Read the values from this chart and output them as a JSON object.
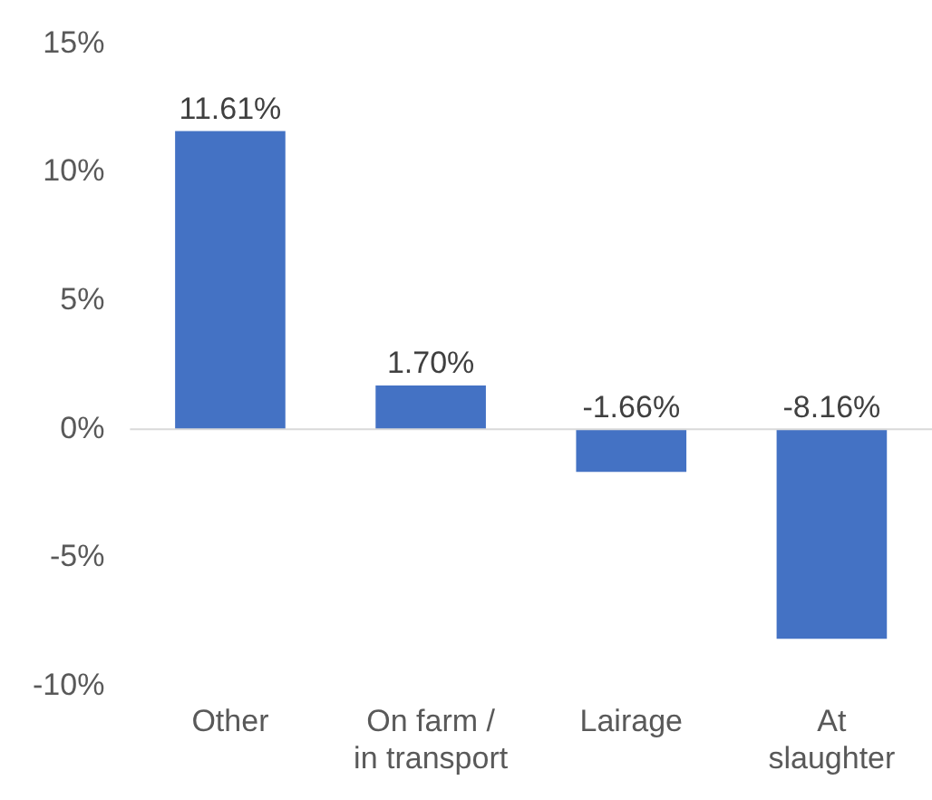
{
  "chart_data": {
    "type": "bar",
    "categories": [
      "Other",
      "On farm / in transport",
      "Lairage",
      "At slaughter"
    ],
    "values": [
      11.61,
      1.7,
      -1.66,
      -8.16
    ],
    "color": "#4472c4",
    "value_labels": [
      "11.61%",
      "1.70%",
      "-1.66%",
      "-8.16%"
    ],
    "ylim": [
      -10,
      15
    ],
    "yticks": [
      {
        "value": -10,
        "label": "-10%"
      },
      {
        "value": -5,
        "label": "-5%"
      },
      {
        "value": 0,
        "label": "0%"
      },
      {
        "value": 5,
        "label": "5%"
      },
      {
        "value": 10,
        "label": "10%"
      },
      {
        "value": 15,
        "label": "15%"
      }
    ],
    "ref_lines": [
      {
        "axis": "y",
        "value": 0,
        "color": "#d9d9d9"
      }
    ],
    "grid": false,
    "legend": false
  }
}
